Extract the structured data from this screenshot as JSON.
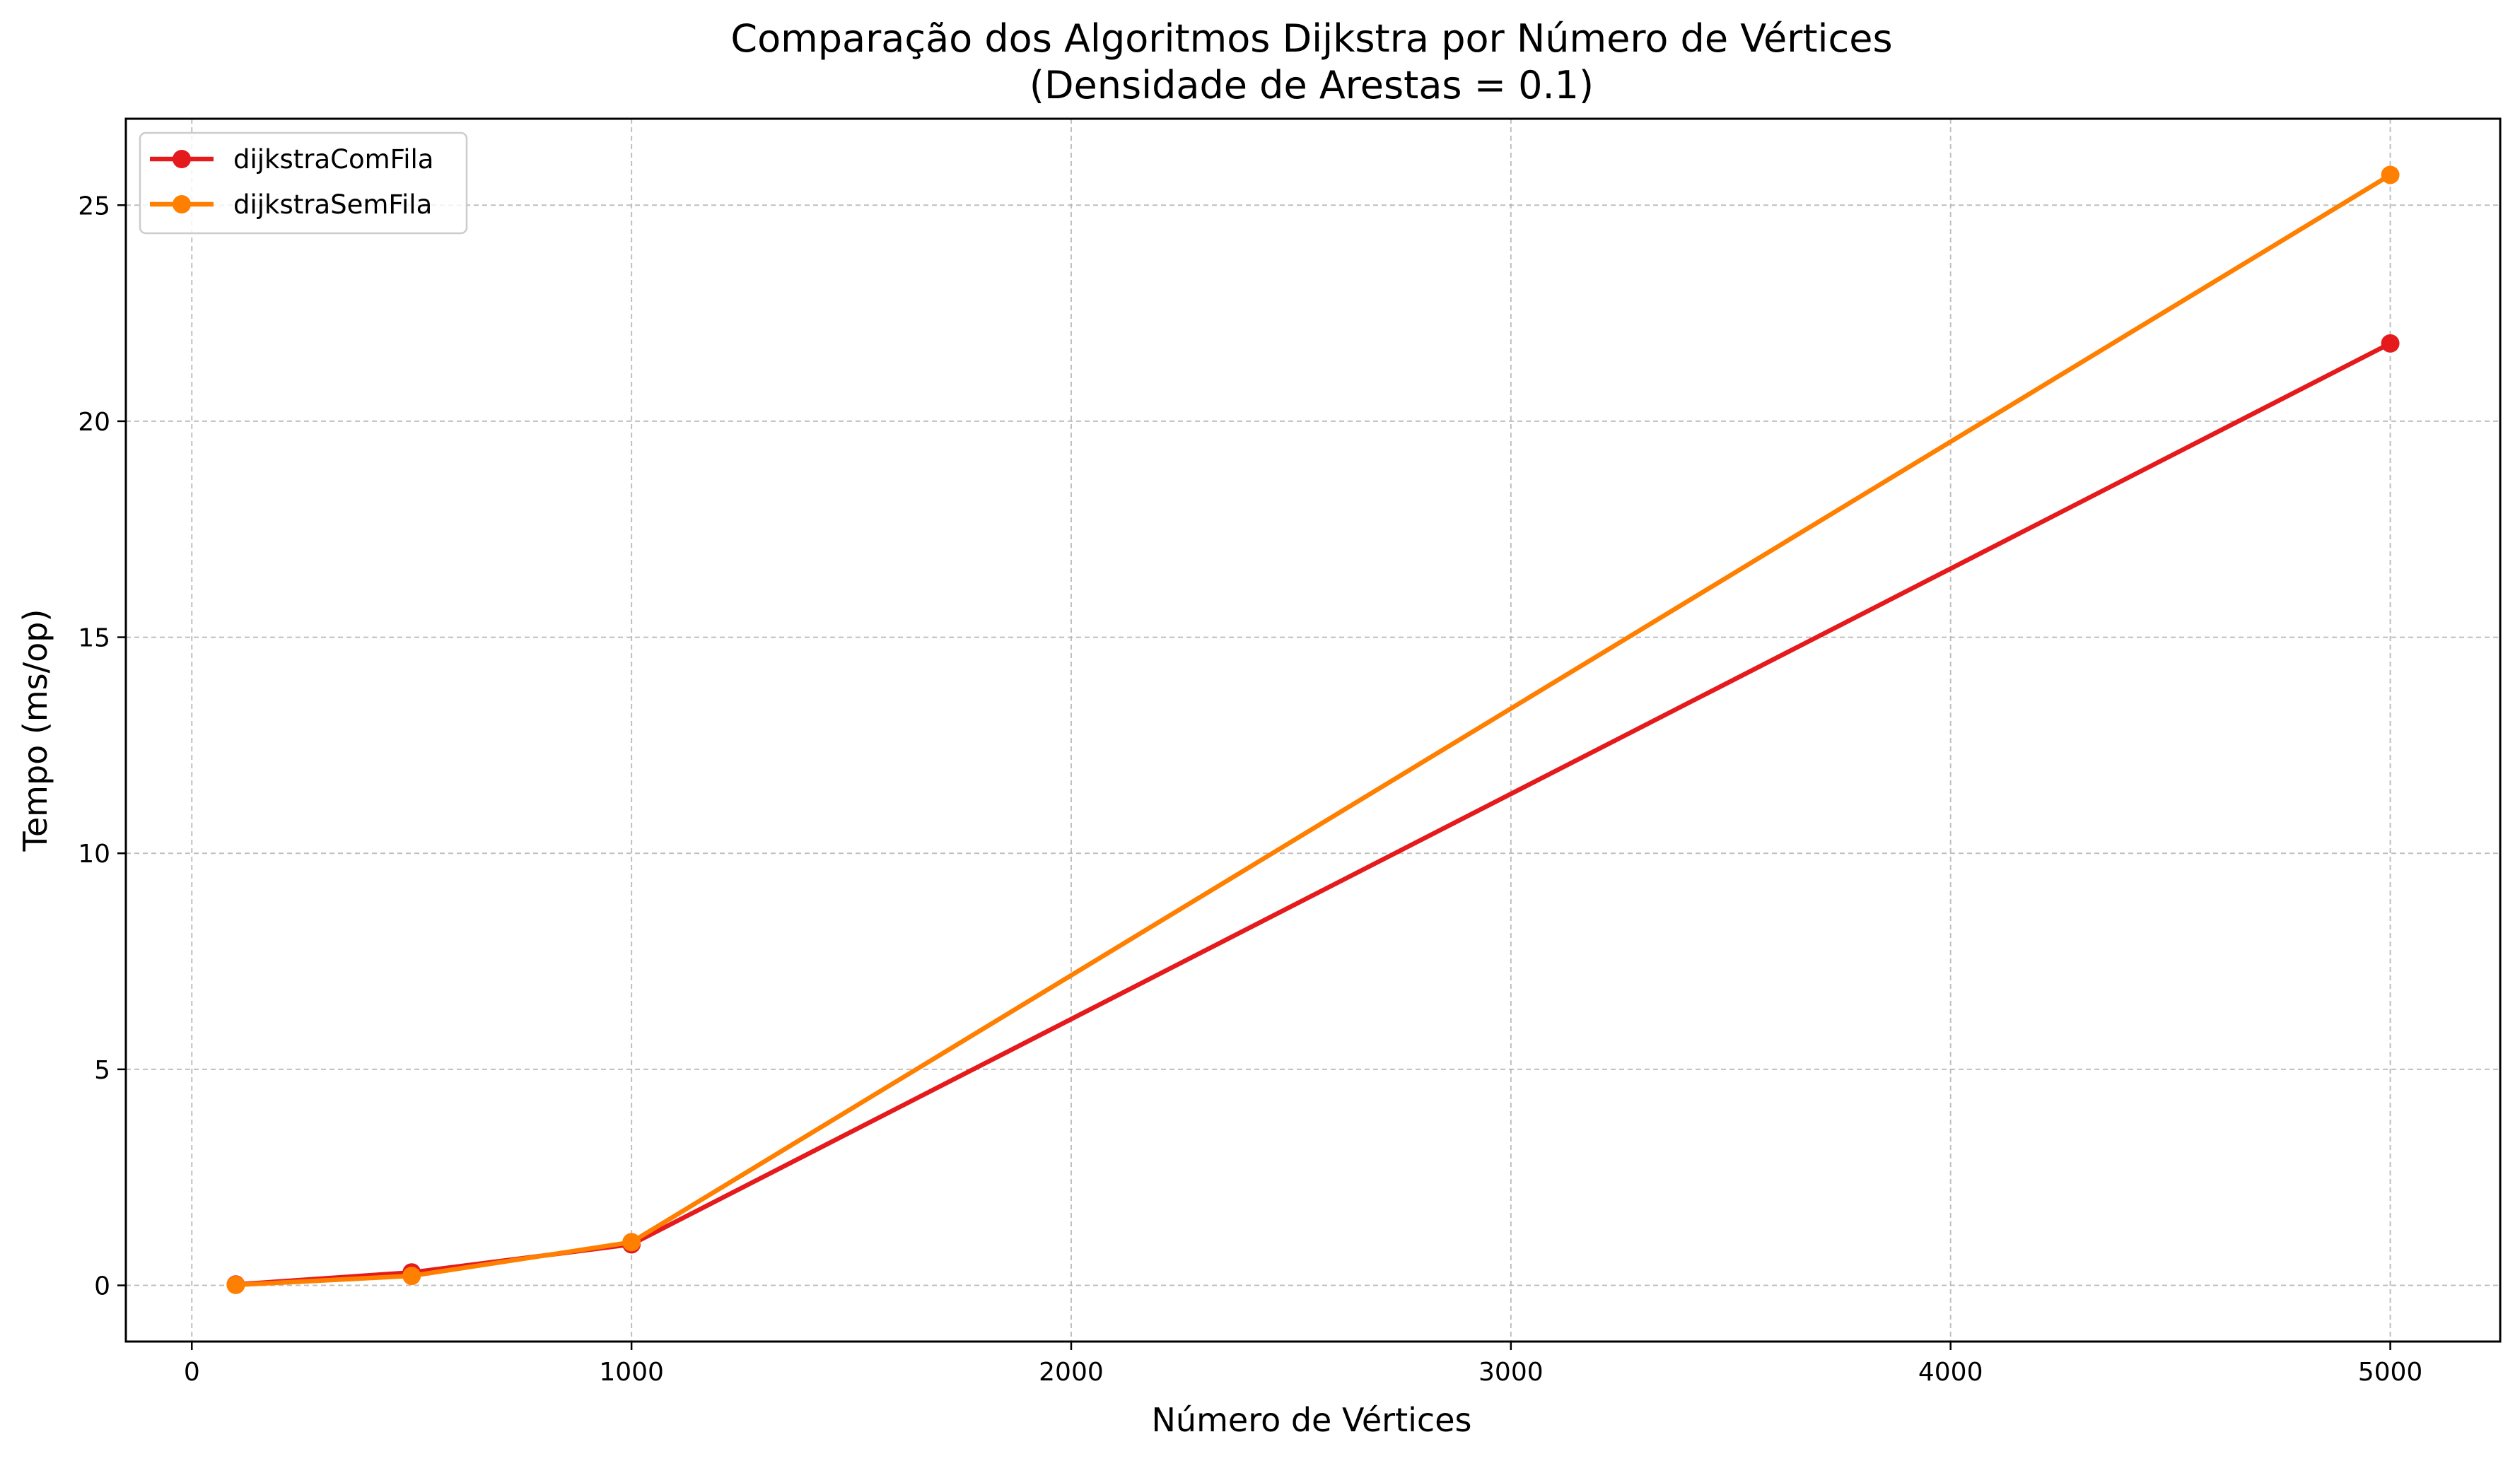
{
  "chart_data": {
    "type": "line",
    "title_line1": "Comparação dos Algoritmos Dijkstra por Número de Vértices",
    "title_line2": "(Densidade de Arestas = 0.1)",
    "xlabel": "Número de Vértices",
    "ylabel": "Tempo (ms/op)",
    "xlim": [
      -150,
      5250
    ],
    "ylim": [
      -1.3,
      27
    ],
    "xticks": [
      0,
      1000,
      2000,
      3000,
      4000,
      5000
    ],
    "xtick_labels": [
      "0",
      "1000",
      "2000",
      "3000",
      "4000",
      "5000"
    ],
    "yticks": [
      0,
      5,
      10,
      15,
      20,
      25
    ],
    "ytick_labels": [
      "0",
      "5",
      "10",
      "15",
      "20",
      "25"
    ],
    "grid": true,
    "legend_position": "top-left",
    "x": [
      100,
      500,
      1000,
      5000
    ],
    "series": [
      {
        "name": "dijkstraComFila",
        "color": "#e41a1c",
        "values": [
          0.02,
          0.3,
          0.95,
          21.8
        ]
      },
      {
        "name": "dijkstraSemFila",
        "color": "#ff7f00",
        "values": [
          0.01,
          0.22,
          1.0,
          25.7
        ]
      }
    ]
  }
}
